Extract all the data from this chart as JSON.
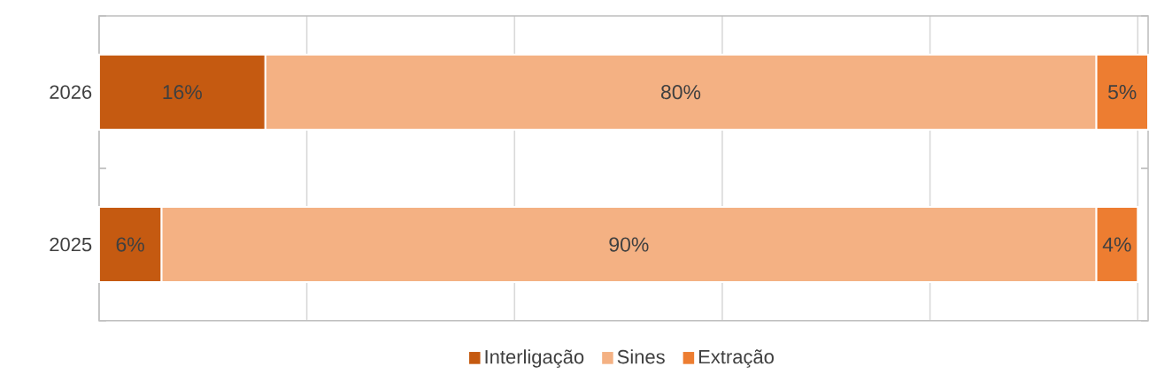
{
  "chart_data": {
    "type": "bar",
    "orientation": "horizontal",
    "stacked": true,
    "categories": [
      "2026",
      "2025"
    ],
    "series": [
      {
        "name": "Interligação",
        "color": "#c55a11",
        "values": [
          16,
          6
        ],
        "value_labels": [
          "16%",
          "6%"
        ]
      },
      {
        "name": "Sines",
        "color": "#f4b183",
        "values": [
          80,
          90
        ],
        "value_labels": [
          "80%",
          "90%"
        ]
      },
      {
        "name": "Extração",
        "color": "#ed7d31",
        "values": [
          5,
          4
        ],
        "value_labels": [
          "5%",
          "4%"
        ]
      }
    ],
    "xlim": [
      0,
      101
    ],
    "xticks": [
      {
        "value": 0,
        "label": null
      },
      {
        "value": 20,
        "label": null
      },
      {
        "value": 40,
        "label": null
      },
      {
        "value": 60,
        "label": null
      },
      {
        "value": 80,
        "label": null
      },
      {
        "value": 100,
        "label": null
      }
    ],
    "grid": "x",
    "legend": "bottom"
  }
}
